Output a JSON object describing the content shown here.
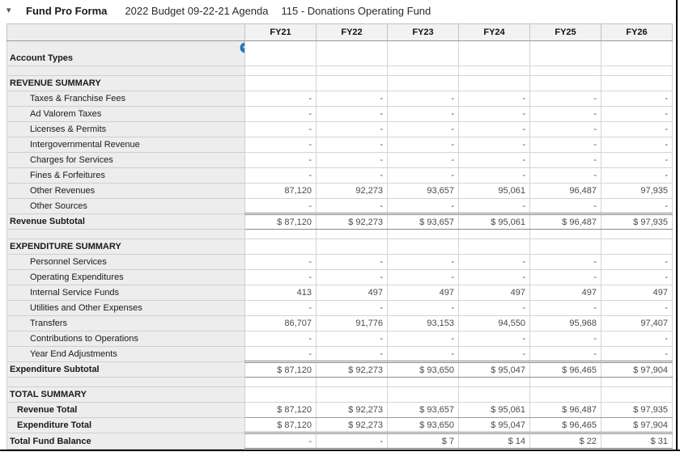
{
  "header": {
    "collapse_caret": "▾",
    "title": "Fund Pro Forma",
    "subtitle_budget": "2022 Budget 09-22-21 Agenda",
    "subtitle_fund": "115 - Donations Operating Fund"
  },
  "colors": {
    "filter_icon_blue": "#2b74b8",
    "label_column_bg": "#ededed",
    "header_row_bg": "#f2f2f2"
  },
  "icons": {
    "filter_dropdown": "circle with white down caret",
    "collapse": "down caret"
  },
  "table": {
    "columns": [
      "FY21",
      "FY22",
      "FY23",
      "FY24",
      "FY25",
      "FY26"
    ],
    "rows": [
      {
        "type": "account-types",
        "label": "Account Types",
        "values": [
          "",
          "",
          "",
          "",
          "",
          ""
        ]
      },
      {
        "type": "spacer",
        "label": "",
        "values": [
          "",
          "",
          "",
          "",
          "",
          ""
        ]
      },
      {
        "type": "section",
        "label": "REVENUE SUMMARY",
        "values": [
          "",
          "",
          "",
          "",
          "",
          ""
        ]
      },
      {
        "type": "detail",
        "label": "Taxes & Franchise Fees",
        "values": [
          "-",
          "-",
          "-",
          "-",
          "-",
          "-"
        ]
      },
      {
        "type": "detail",
        "label": "Ad Valorem Taxes",
        "values": [
          "-",
          "-",
          "-",
          "-",
          "-",
          "-"
        ]
      },
      {
        "type": "detail",
        "label": "Licenses & Permits",
        "values": [
          "-",
          "-",
          "-",
          "-",
          "-",
          "-"
        ]
      },
      {
        "type": "detail",
        "label": "Intergovernmental Revenue",
        "values": [
          "-",
          "-",
          "-",
          "-",
          "-",
          "-"
        ]
      },
      {
        "type": "detail",
        "label": "Charges for Services",
        "values": [
          "-",
          "-",
          "-",
          "-",
          "-",
          "-"
        ]
      },
      {
        "type": "detail",
        "label": "Fines & Forfeitures",
        "values": [
          "-",
          "-",
          "-",
          "-",
          "-",
          "-"
        ]
      },
      {
        "type": "detail",
        "label": "Other Revenues",
        "values": [
          "87,120",
          "92,273",
          "93,657",
          "95,061",
          "96,487",
          "97,935"
        ]
      },
      {
        "type": "detail",
        "label": "Other Sources",
        "values": [
          "-",
          "-",
          "-",
          "-",
          "-",
          "-"
        ]
      },
      {
        "type": "subtotal",
        "label": "Revenue Subtotal",
        "values": [
          "$ 87,120",
          "$ 92,273",
          "$ 93,657",
          "$ 95,061",
          "$ 96,487",
          "$ 97,935"
        ]
      },
      {
        "type": "spacer",
        "label": "",
        "values": [
          "",
          "",
          "",
          "",
          "",
          ""
        ]
      },
      {
        "type": "section",
        "label": "EXPENDITURE SUMMARY",
        "values": [
          "",
          "",
          "",
          "",
          "",
          ""
        ]
      },
      {
        "type": "detail",
        "label": "Personnel Services",
        "values": [
          "-",
          "-",
          "-",
          "-",
          "-",
          "-"
        ]
      },
      {
        "type": "detail",
        "label": "Operating Expenditures",
        "values": [
          "-",
          "-",
          "-",
          "-",
          "-",
          "-"
        ]
      },
      {
        "type": "detail",
        "label": "Internal Service Funds",
        "values": [
          "413",
          "497",
          "497",
          "497",
          "497",
          "497"
        ]
      },
      {
        "type": "detail",
        "label": "Utilities and Other Expenses",
        "values": [
          "-",
          "-",
          "-",
          "-",
          "-",
          "-"
        ]
      },
      {
        "type": "detail",
        "label": "Transfers",
        "values": [
          "86,707",
          "91,776",
          "93,153",
          "94,550",
          "95,968",
          "97,407"
        ]
      },
      {
        "type": "detail",
        "label": "Contributions to Operations",
        "values": [
          "-",
          "-",
          "-",
          "-",
          "-",
          "-"
        ]
      },
      {
        "type": "detail",
        "label": "Year End Adjustments",
        "values": [
          "-",
          "-",
          "-",
          "-",
          "-",
          "-"
        ]
      },
      {
        "type": "subtotal",
        "label": "Expenditure Subtotal",
        "values": [
          "$ 87,120",
          "$ 92,273",
          "$ 93,650",
          "$ 95,047",
          "$ 96,465",
          "$ 97,904"
        ]
      },
      {
        "type": "spacer",
        "label": "",
        "values": [
          "",
          "",
          "",
          "",
          "",
          ""
        ]
      },
      {
        "type": "section",
        "label": "TOTAL SUMMARY",
        "values": [
          "",
          "",
          "",
          "",
          "",
          ""
        ]
      },
      {
        "type": "total",
        "label": "Revenue Total",
        "values": [
          "$ 87,120",
          "$ 92,273",
          "$ 93,657",
          "$ 95,061",
          "$ 96,487",
          "$ 97,935"
        ]
      },
      {
        "type": "total",
        "label": "Expenditure Total",
        "values": [
          "$ 87,120",
          "$ 92,273",
          "$ 93,650",
          "$ 95,047",
          "$ 96,465",
          "$ 97,904"
        ]
      },
      {
        "type": "grand-total",
        "label": "Total Fund Balance",
        "values": [
          "-",
          "-",
          "$ 7",
          "$ 14",
          "$ 22",
          "$ 31"
        ]
      }
    ]
  }
}
